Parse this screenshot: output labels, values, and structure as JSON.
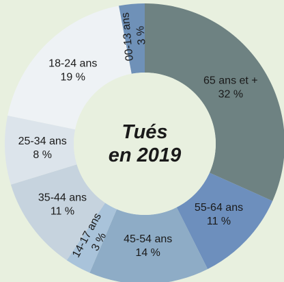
{
  "chart_data": {
    "type": "donut",
    "title": "Tués en 2019",
    "categories": [
      "00-13 ans",
      "65 ans et +",
      "55-64 ans",
      "45-54 ans",
      "14-17 ans",
      "35-44 ans",
      "25-34 ans",
      "18-24 ans"
    ],
    "values": [
      3,
      32,
      11,
      14,
      3,
      11,
      8,
      19
    ],
    "value_labels": [
      "3 %",
      "32 %",
      "11 %",
      "14 %",
      "3 %",
      "11 %",
      "8 %",
      "19 %"
    ],
    "colors": [
      "#6f91b8",
      "#6e8282",
      "#6d8fbd",
      "#8eacc6",
      "#a9c3da",
      "#c6d3de",
      "#dce4eb",
      "#eef2f5"
    ]
  }
}
